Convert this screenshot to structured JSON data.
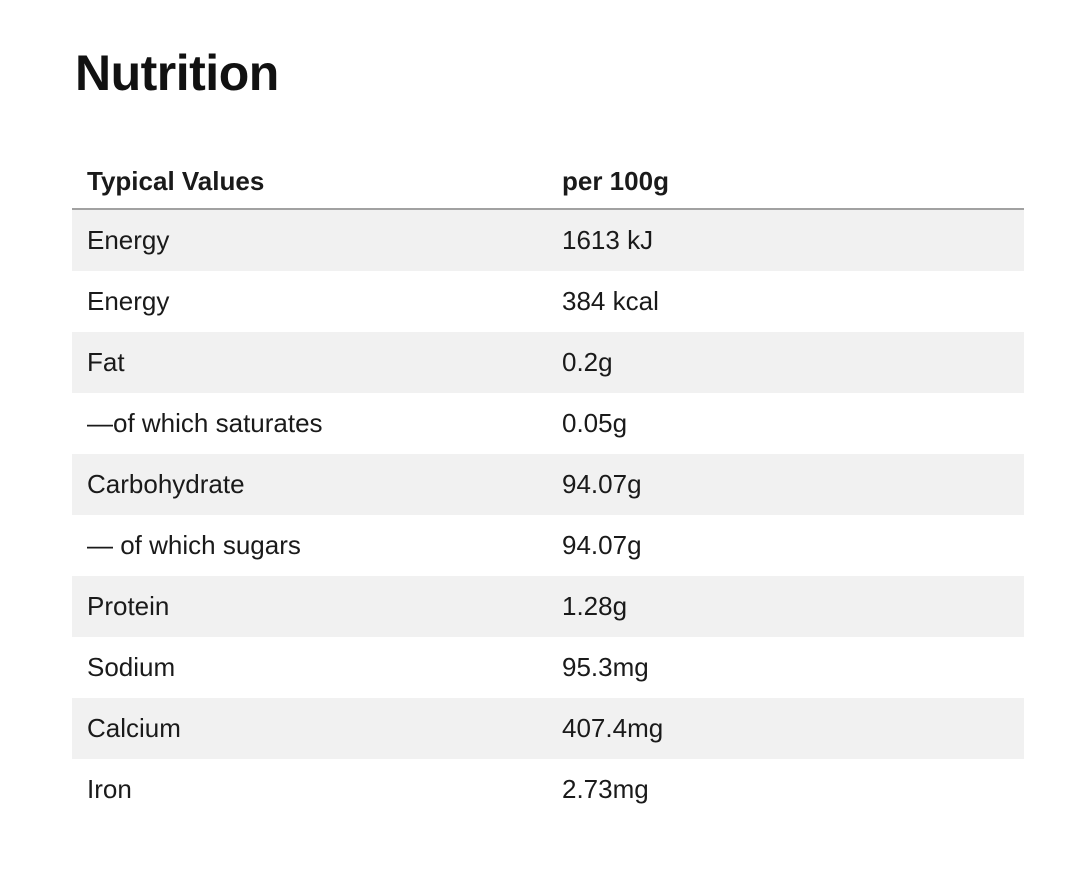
{
  "page": {
    "title": "Nutrition"
  },
  "table": {
    "columns": [
      {
        "label": "Typical Values"
      },
      {
        "label": "per 100g"
      }
    ],
    "rows": [
      {
        "name": "Energy",
        "value": "1613 kJ"
      },
      {
        "name": "Energy",
        "value": "384 kcal"
      },
      {
        "name": "Fat",
        "value": "0.2g"
      },
      {
        "name": "—of which saturates",
        "value": "0.05g"
      },
      {
        "name": "Carbohydrate",
        "value": "94.07g"
      },
      {
        "name": "— of which sugars",
        "value": "94.07g"
      },
      {
        "name": "Protein",
        "value": "1.28g"
      },
      {
        "name": "Sodium",
        "value": "95.3mg"
      },
      {
        "name": "Calcium",
        "value": "407.4mg"
      },
      {
        "name": "Iron",
        "value": "2.73mg"
      }
    ]
  },
  "colors": {
    "text": "#1a1a1a",
    "row_alt": "#f1f1f1",
    "header_border": "#a1a1a1",
    "background": "#ffffff"
  }
}
